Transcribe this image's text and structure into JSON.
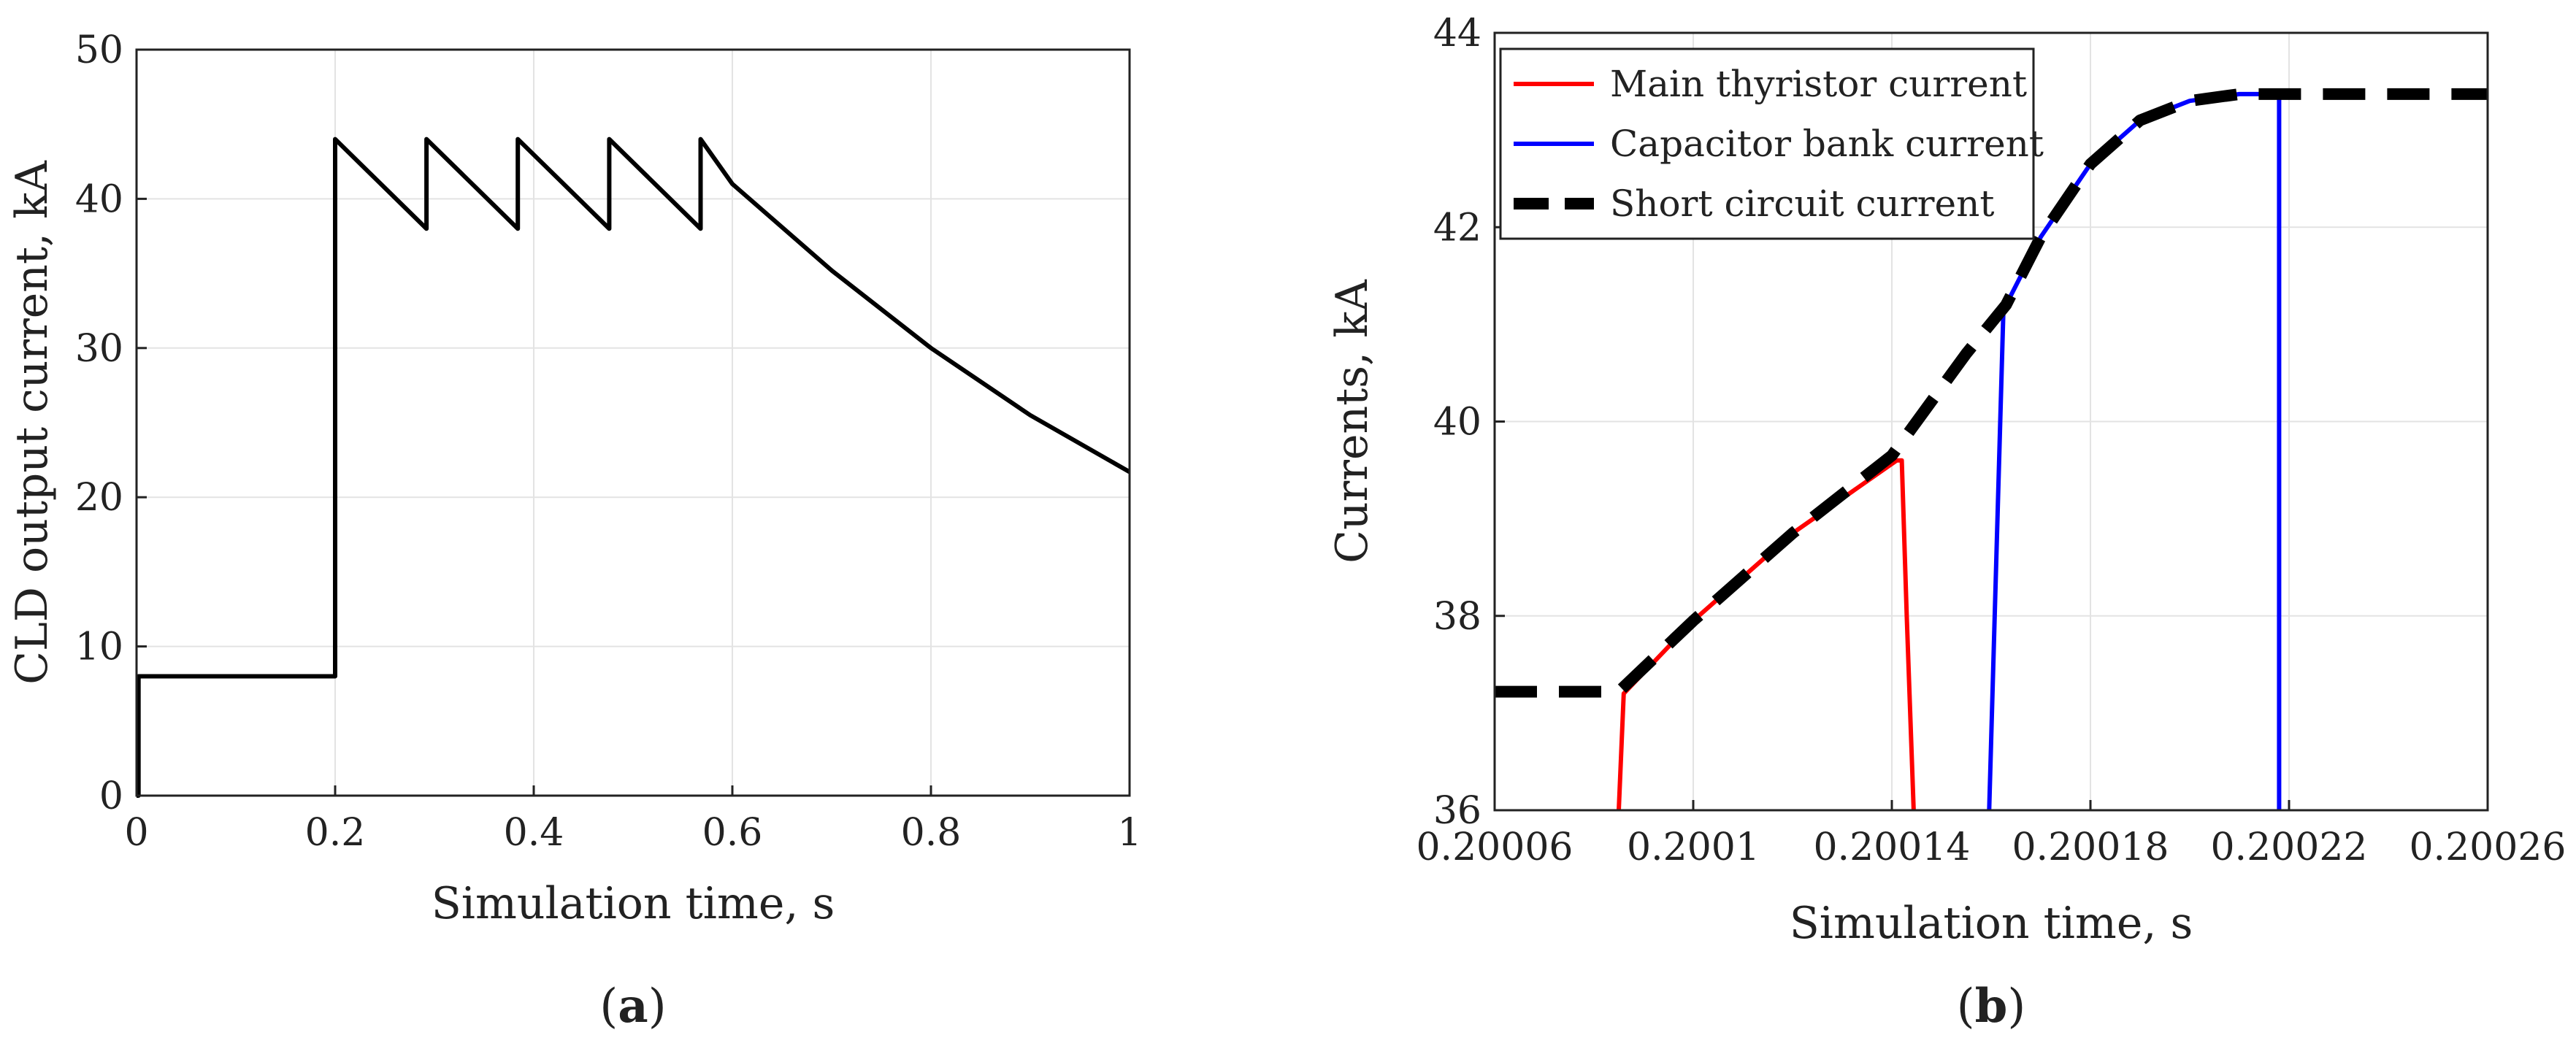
{
  "chart_data": [
    {
      "type": "line",
      "panel_label": {
        "open": "(",
        "letter": "a",
        "close": ")"
      },
      "xlabel": "Simulation time, s",
      "ylabel": "CLD output current, kA",
      "xlim": [
        0,
        1
      ],
      "ylim": [
        0,
        50
      ],
      "xticks": [
        0,
        0.2,
        0.4,
        0.6,
        0.8,
        1
      ],
      "xtick_labels": [
        "0",
        "0.2",
        "0.4",
        "0.6",
        "0.8",
        "1"
      ],
      "yticks": [
        0,
        10,
        20,
        30,
        40,
        50
      ],
      "ytick_labels": [
        "0",
        "10",
        "20",
        "30",
        "40",
        "50"
      ],
      "grid": true,
      "series": [
        {
          "color": "#000000",
          "style": "solid",
          "x": [
            0,
            0.002,
            0.002,
            0.2,
            0.2,
            0.292,
            0.292,
            0.384,
            0.384,
            0.476,
            0.476,
            0.568,
            0.568,
            0.6,
            0.7,
            0.8,
            0.9,
            1.0
          ],
          "y": [
            0,
            0,
            8,
            8,
            44,
            38,
            44,
            38,
            44,
            38,
            44,
            38,
            44,
            41.0,
            35.2,
            30.0,
            25.5,
            21.7
          ]
        }
      ]
    },
    {
      "type": "line",
      "panel_label": {
        "open": "(",
        "letter": "b",
        "close": ")"
      },
      "xlabel": "Simulation time, s",
      "ylabel": "Currents, kA",
      "xlim": [
        0.20006,
        0.20026
      ],
      "ylim": [
        36,
        44
      ],
      "xticks": [
        0.20006,
        0.2001,
        0.20014,
        0.20018,
        0.20022,
        0.20026
      ],
      "xtick_labels": [
        "0.20006",
        "0.2001",
        "0.20014",
        "0.20018",
        "0.20022",
        "0.20026"
      ],
      "yticks": [
        36,
        38,
        40,
        42,
        44
      ],
      "ytick_labels": [
        "36",
        "38",
        "40",
        "42",
        "44"
      ],
      "grid": true,
      "legend": {
        "placement": "top-left"
      },
      "series": [
        {
          "name": "Main thyristor current",
          "color": "#ff0000",
          "style": "solid",
          "x": [
            0.200085,
            0.200086,
            0.2001,
            0.20012,
            0.200141,
            0.200142,
            0.200143,
            0.2001444
          ],
          "y": [
            36.0,
            37.2,
            37.95,
            38.85,
            39.6,
            39.6,
            38.0,
            36.0
          ]
        },
        {
          "name": "Capacitor bank current",
          "color": "#0000ff",
          "style": "solid",
          "x": [
            0.2001596,
            0.2001625,
            0.200163,
            0.20017,
            0.20018,
            0.20019,
            0.2002,
            0.20021,
            0.200218,
            0.200218
          ],
          "y": [
            36.0,
            41.2,
            41.2,
            41.9,
            42.65,
            43.1,
            43.3,
            43.37,
            43.37,
            36.0
          ]
        },
        {
          "name": "Short circuit current",
          "color": "#000000",
          "style": "dashed",
          "x": [
            0.20006,
            0.200085,
            0.2001,
            0.20012,
            0.20014,
            0.200155,
            0.200163,
            0.20017,
            0.20018,
            0.20019,
            0.2002,
            0.20021,
            0.200218,
            0.20026
          ],
          "y": [
            37.22,
            37.22,
            37.95,
            38.85,
            39.65,
            40.7,
            41.2,
            41.9,
            42.65,
            43.1,
            43.3,
            43.37,
            43.37,
            43.37
          ]
        }
      ]
    }
  ]
}
